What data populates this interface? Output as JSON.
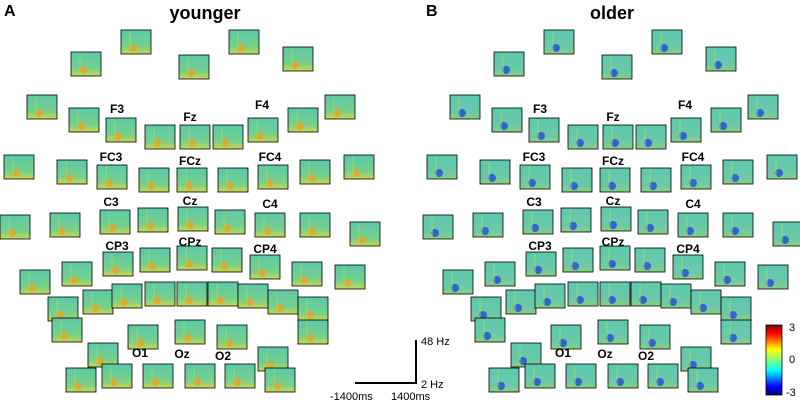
{
  "panels": [
    {
      "letter": "A",
      "title": "younger",
      "electrodes": [
        "F3",
        "Fz",
        "F4",
        "FC3",
        "FCz",
        "FC4",
        "C3",
        "Cz",
        "C4",
        "CP3",
        "CPz",
        "CP4",
        "O1",
        "Oz",
        "O2"
      ]
    },
    {
      "letter": "B",
      "title": "older",
      "electrodes": [
        "F3",
        "Fz",
        "F4",
        "FC3",
        "FCz",
        "FC4",
        "C3",
        "Cz",
        "C4",
        "CP3",
        "CPz",
        "CP4",
        "O1",
        "Oz",
        "O2"
      ]
    }
  ],
  "scale_bar": {
    "top": "48 Hz",
    "bottom": "2 Hz",
    "left": "-1400ms",
    "right": "1400ms"
  },
  "colorbar": {
    "labels": [
      "3",
      "0",
      "-3"
    ]
  }
}
